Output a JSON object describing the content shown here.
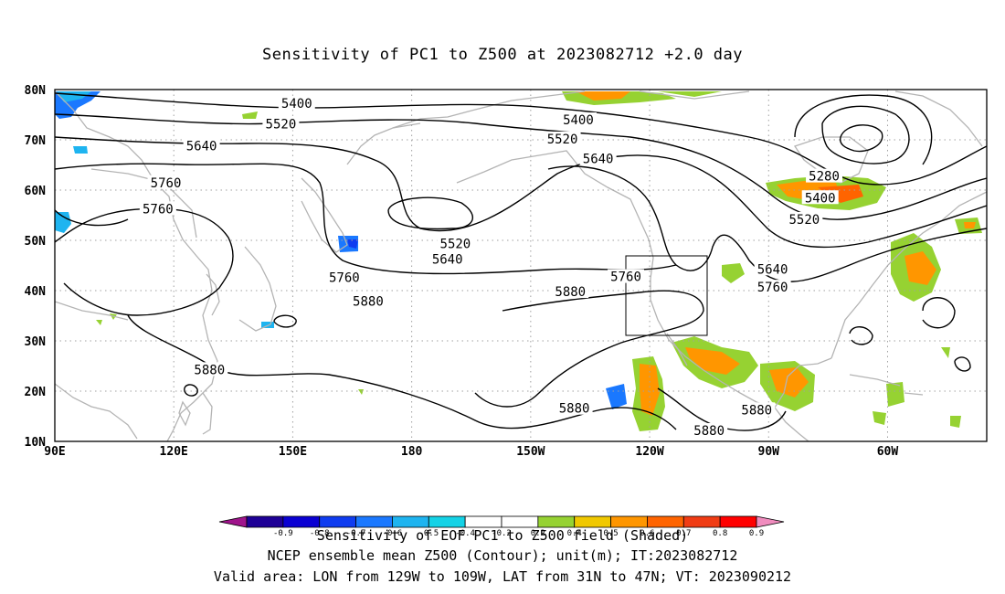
{
  "title": "Sensitivity of PC1 to Z500 at 2023082712 +2.0 day",
  "lat_labels": [
    "80N",
    "70N",
    "60N",
    "50N",
    "40N",
    "30N",
    "20N",
    "10N"
  ],
  "lon_labels": [
    "90E",
    "120E",
    "150E",
    "180",
    "150W",
    "120W",
    "90W",
    "60W"
  ],
  "contour_labels": [
    {
      "text": "5400",
      "lon": 151,
      "lat": 77.3
    },
    {
      "text": "5520",
      "lon": 147,
      "lat": 73.2
    },
    {
      "text": "5640",
      "lon": 127,
      "lat": 68.8
    },
    {
      "text": "5760",
      "lon": 118,
      "lat": 61.5
    },
    {
      "text": "5760",
      "lon": 116,
      "lat": 56.3
    },
    {
      "text": "5400",
      "lon": -138,
      "lat": 74
    },
    {
      "text": "5520",
      "lon": -142,
      "lat": 70.2
    },
    {
      "text": "5640",
      "lon": -133,
      "lat": 66.3
    },
    {
      "text": "5280",
      "lon": -76,
      "lat": 62.8
    },
    {
      "text": "5400",
      "lon": -77,
      "lat": 58.5
    },
    {
      "text": "5520",
      "lon": -81,
      "lat": 54.2
    },
    {
      "text": "5640",
      "lon": -89,
      "lat": 44.3
    },
    {
      "text": "5760",
      "lon": -89,
      "lat": 40.7
    },
    {
      "text": "5520",
      "lon": -169,
      "lat": 49.4
    },
    {
      "text": "5640",
      "lon": -171,
      "lat": 46.3
    },
    {
      "text": "5760",
      "lon": 163,
      "lat": 42.6
    },
    {
      "text": "5760",
      "lon": -126,
      "lat": 42.8
    },
    {
      "text": "5880",
      "lon": -140,
      "lat": 39.8
    },
    {
      "text": "5880",
      "lon": 169,
      "lat": 37.9
    },
    {
      "text": "5880",
      "lon": 129,
      "lat": 24.3
    },
    {
      "text": "5880",
      "lon": -139,
      "lat": 16.6
    },
    {
      "text": "5880",
      "lon": -105,
      "lat": 12.2
    },
    {
      "text": "5880",
      "lon": -93,
      "lat": 16.3
    }
  ],
  "colorbar": {
    "colors": [
      "#a0148c",
      "#1e0096",
      "#0a00d2",
      "#0f3cf0",
      "#1a78ff",
      "#1eb4f0",
      "#14d2e6",
      "#ffffff",
      "#ffffff",
      "#96d232",
      "#f0c800",
      "#ff9600",
      "#ff6400",
      "#f03c14",
      "#ff0000",
      "#f08cbe"
    ],
    "tick_labels": [
      "-0.9",
      "-0.8",
      "-0.7",
      "-0.6",
      "-0.5",
      "-0.4",
      "-0.2",
      "0.2",
      "0.4",
      "0.5",
      "0.6",
      "0.7",
      "0.8",
      "0.9"
    ]
  },
  "footer": {
    "line1": "Sensitivity of EOF PC1 to Z500 field (Shaded)",
    "line2": "NCEP ensemble mean Z500 (Contour); unit(m); IT:2023082712",
    "line3": "Valid area: LON from 129W to 109W, LAT from 31N to 47N; VT: 2023090212"
  },
  "colors": {
    "contour": "#000000",
    "coast": "#b4b4b4",
    "grid": "#a0a0a0",
    "green": "#96d232",
    "orange": "#ff9600",
    "lightblue": "#1eb4f0",
    "blue": "#1a78ff"
  }
}
